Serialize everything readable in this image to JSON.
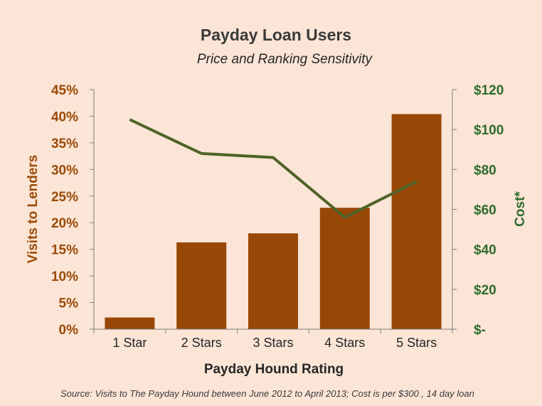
{
  "chart_data": {
    "type": "bar",
    "title": "Payday Loan Users",
    "subtitle": "Price and Ranking Sensitivity",
    "xlabel": "Payday Hound Rating",
    "ylabel": "Visits to Lenders",
    "y2label": "Cost*",
    "categories": [
      "1 Star",
      "2 Stars",
      "3 Stars",
      "4 Stars",
      "5 Stars"
    ],
    "series": [
      {
        "type": "bar",
        "axis": "left",
        "color": "#974706",
        "values": [
          0.022,
          0.163,
          0.18,
          0.228,
          0.404
        ]
      },
      {
        "type": "line",
        "axis": "right",
        "color": "#4f6228",
        "values": [
          105,
          88,
          86,
          56,
          74
        ]
      }
    ],
    "ylim": [
      0,
      0.45
    ],
    "yticks": [
      {
        "value": 0,
        "label": "0%"
      },
      {
        "value": 0.05,
        "label": "5%"
      },
      {
        "value": 0.1,
        "label": "10%"
      },
      {
        "value": 0.15,
        "label": "15%"
      },
      {
        "value": 0.2,
        "label": "20%"
      },
      {
        "value": 0.25,
        "label": "25%"
      },
      {
        "value": 0.3,
        "label": "30%"
      },
      {
        "value": 0.35,
        "label": "35%"
      },
      {
        "value": 0.4,
        "label": "40%"
      },
      {
        "value": 0.45,
        "label": "45%"
      }
    ],
    "y2lim": [
      0,
      120
    ],
    "y2ticks": [
      {
        "value": 0,
        "label": "$-"
      },
      {
        "value": 20,
        "label": "$20"
      },
      {
        "value": 40,
        "label": "$40"
      },
      {
        "value": 60,
        "label": "$60"
      },
      {
        "value": 80,
        "label": "$80"
      },
      {
        "value": 100,
        "label": "$100"
      },
      {
        "value": 120,
        "label": "$120"
      }
    ],
    "grid": false,
    "source_note": "Source: Visits to The Payday Hound between June 2012 to April 2013;  Cost is per $300 , 14 day loan"
  },
  "colors": {
    "background": "#fbe5d6",
    "left_axis_text": "#9a4a06",
    "right_axis_text": "#2f6b2f",
    "axis_line": "#7f7f7f"
  }
}
